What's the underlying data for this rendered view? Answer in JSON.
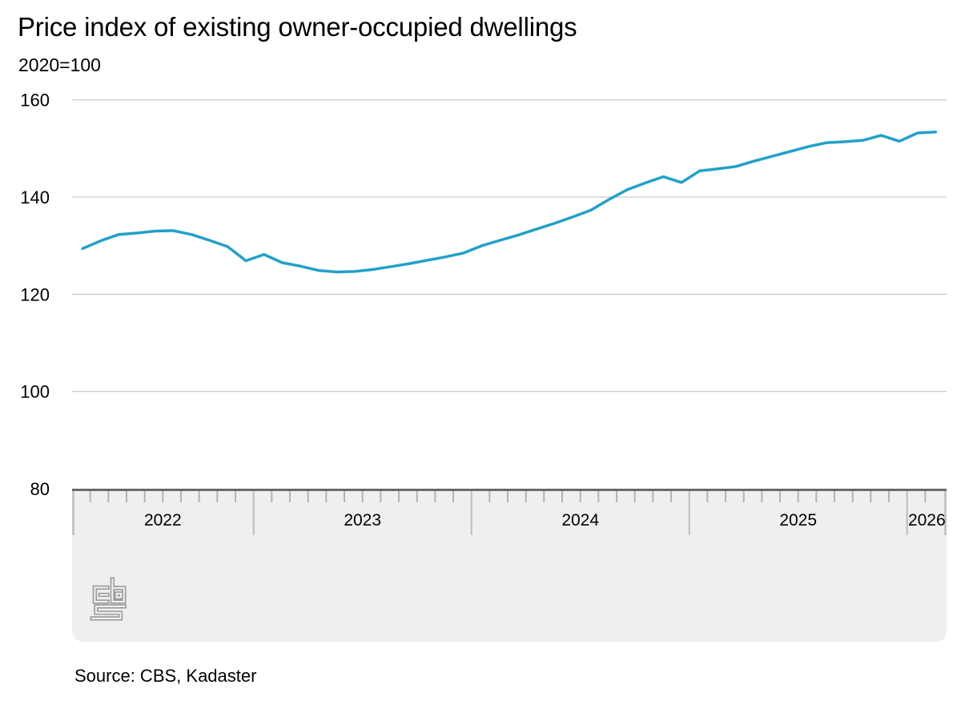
{
  "header": {
    "title": "Price index of existing owner-occupied dwellings",
    "subtitle": "2020=100"
  },
  "footer": {
    "source": "Source: CBS, Kadaster",
    "logo": "cbs-logo"
  },
  "colors": {
    "line": "#23a0c8",
    "grid": "#c9c9c9",
    "band_fill": "#efefef",
    "band_border": "#6b6b6b",
    "tick_minor": "#b3b3b3",
    "tick_year": "#bdbdbd",
    "logo_gray": "#9a9a9a",
    "text": "#000000"
  },
  "chart_data": {
    "type": "line",
    "title": "Price index of existing owner-occupied dwellings",
    "unit_note": "2020=100",
    "legend": "none",
    "grid": true,
    "x_axis": {
      "range": [
        "2022-03",
        "2026-02"
      ],
      "minor_tick": "month",
      "year_labels": [
        "2022",
        "2023",
        "2024",
        "2025",
        "2026"
      ]
    },
    "y_axis": {
      "range": [
        80,
        160
      ],
      "ticks": [
        160,
        140,
        120,
        100,
        80
      ],
      "gridlines": [
        160,
        140,
        120,
        100
      ]
    },
    "series": [
      {
        "name": "Price index of existing owner-occupied dwellings",
        "color": "#23a0c8",
        "months": [
          "2022-03",
          "2022-04",
          "2022-05",
          "2022-06",
          "2022-07",
          "2022-08",
          "2022-09",
          "2022-10",
          "2022-11",
          "2022-12",
          "2023-01",
          "2023-02",
          "2023-03",
          "2023-04",
          "2023-05",
          "2023-06",
          "2023-07",
          "2023-08",
          "2023-09",
          "2023-10",
          "2023-11",
          "2023-12",
          "2024-01",
          "2024-02",
          "2024-03",
          "2024-04",
          "2024-05",
          "2024-06",
          "2024-07",
          "2024-08",
          "2024-09",
          "2024-10",
          "2024-11",
          "2024-12",
          "2025-01",
          "2025-02",
          "2025-03",
          "2025-04",
          "2025-05",
          "2025-06",
          "2025-07",
          "2025-08",
          "2025-09",
          "2025-10",
          "2025-11",
          "2025-12",
          "2026-01",
          "2026-02"
        ],
        "values": [
          129.4,
          131.0,
          132.3,
          132.6,
          133.0,
          133.1,
          132.3,
          131.1,
          129.8,
          126.9,
          128.2,
          126.5,
          125.8,
          124.9,
          124.6,
          124.7,
          125.1,
          125.7,
          126.3,
          127.0,
          127.7,
          128.5,
          130.0,
          131.1,
          132.2,
          133.4,
          134.6,
          135.9,
          137.3,
          139.5,
          141.5,
          142.9,
          144.2,
          143.0,
          145.4,
          145.8,
          146.3,
          147.4,
          148.4,
          149.4,
          150.4,
          151.2,
          151.4,
          151.7,
          152.7,
          151.5,
          153.2,
          153.4
        ]
      }
    ]
  }
}
